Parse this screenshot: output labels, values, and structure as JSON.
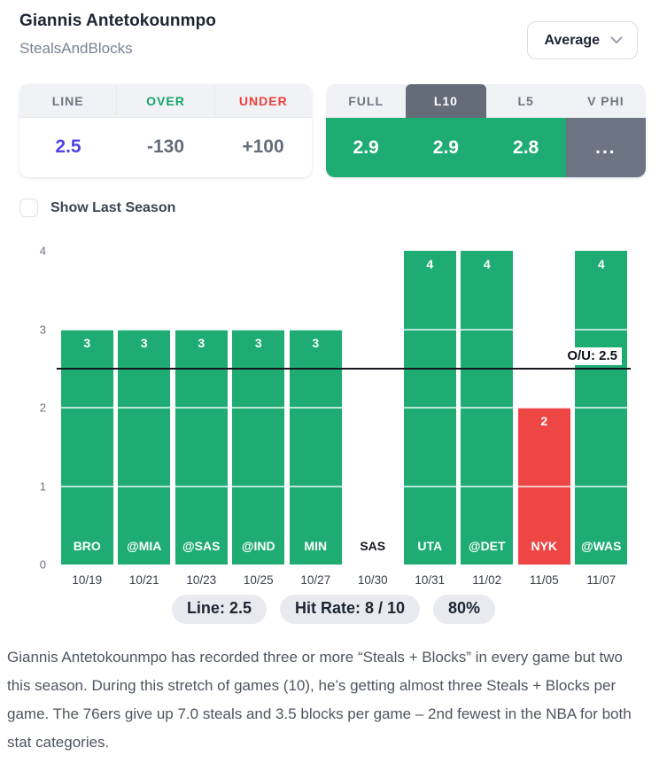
{
  "header": {
    "title": "Giannis Antetokounmpo",
    "subtitle": "StealsAndBlocks",
    "average_dropdown": {
      "value": "Average"
    }
  },
  "odds": {
    "columns": [
      {
        "label": "LINE",
        "value": "2.5"
      },
      {
        "label": "OVER",
        "value": "-130"
      },
      {
        "label": "UNDER",
        "value": "+100"
      }
    ]
  },
  "splits": {
    "tabs": [
      {
        "label": "FULL",
        "value": "2.9",
        "selected": false
      },
      {
        "label": "L10",
        "value": "2.9",
        "selected": true
      },
      {
        "label": "L5",
        "value": "2.8",
        "selected": false
      },
      {
        "label": "V PHI",
        "value": "...",
        "selected": false
      }
    ]
  },
  "controls": {
    "show_last_season_label": "Show Last Season",
    "show_last_season_checked": false
  },
  "chart_data": {
    "type": "bar",
    "categories": [
      "BRO",
      "@MIA",
      "@SAS",
      "@IND",
      "MIN",
      "SAS",
      "UTA",
      "@DET",
      "NYK",
      "@WAS"
    ],
    "dates": [
      "10/19",
      "10/21",
      "10/23",
      "10/25",
      "10/27",
      "10/30",
      "10/31",
      "11/02",
      "11/05",
      "11/07"
    ],
    "values": [
      3,
      3,
      3,
      3,
      3,
      null,
      4,
      4,
      2,
      4
    ],
    "bar_results": [
      "over",
      "over",
      "over",
      "over",
      "over",
      "none",
      "over",
      "over",
      "under",
      "over"
    ],
    "ylim": [
      0,
      4
    ],
    "yticks": [
      0,
      1,
      2,
      3,
      4
    ],
    "reference_line": {
      "value": 2.5,
      "label": "O/U: 2.5"
    },
    "grid": "white gridlines drawn across bars at integer values",
    "legend": "none"
  },
  "badges": [
    "Line: 2.5",
    "Hit Rate: 8 / 10",
    "80%"
  ],
  "summary": "Giannis Antetokounmpo has recorded three or more “Steals + Blocks” in every game but two this season. During this stretch of games (10), he’s getting almost three Steals + Blocks per game. The 76ers give up 7.0 steals and 3.5 blocks per game – 2nd fewest in the NBA for both stat categories.",
  "colors": {
    "over_green": "#1eac72",
    "under_red": "#ee4545",
    "line_indigo": "#4f45e4",
    "over_text_green": "#14a36c",
    "under_text_red": "#f03e3e",
    "tab_selected_gray": "#646c7a",
    "vphi_cell_gray": "#6c7382",
    "reference_line_black": "#16181d",
    "badge_bg": "#e9eaef"
  }
}
